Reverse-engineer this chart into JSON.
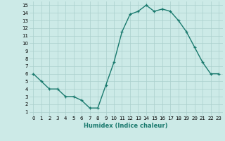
{
  "x": [
    0,
    1,
    2,
    3,
    4,
    5,
    6,
    7,
    8,
    9,
    10,
    11,
    12,
    13,
    14,
    15,
    16,
    17,
    18,
    19,
    20,
    21,
    22,
    23
  ],
  "y": [
    6,
    5,
    4,
    4,
    3,
    3,
    2.5,
    1.5,
    1.5,
    4.5,
    7.5,
    11.5,
    13.8,
    14.2,
    15,
    14.2,
    14.5,
    14.2,
    13,
    11.5,
    9.5,
    7.5,
    6,
    6
  ],
  "line_color": "#1a7a6e",
  "marker": "+",
  "background_color": "#cceae7",
  "grid_color": "#aacfcc",
  "xlabel": "Humidex (Indice chaleur)",
  "xlim": [
    -0.5,
    23.5
  ],
  "ylim": [
    0.5,
    15.5
  ],
  "xticks": [
    0,
    1,
    2,
    3,
    4,
    5,
    6,
    7,
    8,
    9,
    10,
    11,
    12,
    13,
    14,
    15,
    16,
    17,
    18,
    19,
    20,
    21,
    22,
    23
  ],
  "yticks": [
    1,
    2,
    3,
    4,
    5,
    6,
    7,
    8,
    9,
    10,
    11,
    12,
    13,
    14,
    15
  ],
  "line_width": 1.0,
  "marker_size": 3.5,
  "tick_fontsize": 5.0,
  "xlabel_fontsize": 6.0
}
